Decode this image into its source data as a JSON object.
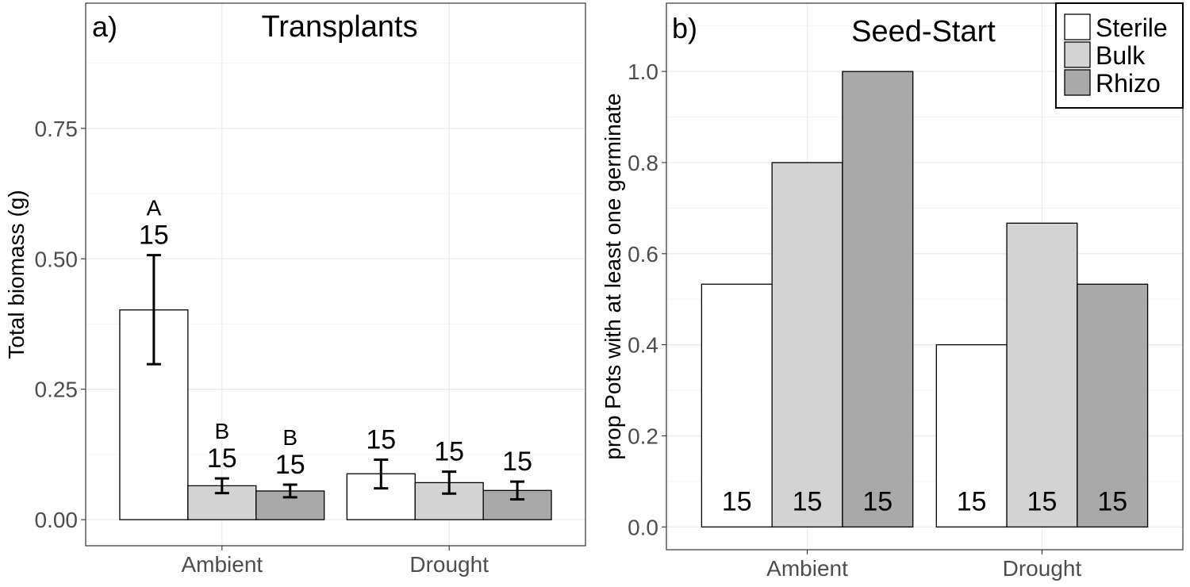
{
  "chart_data": [
    {
      "type": "bar",
      "tag": "a)",
      "title": "Transplants",
      "ylabel": "Total biomass (g)",
      "xlabel": "",
      "ylim": [
        -0.05,
        0.99
      ],
      "yticks": [
        0.0,
        0.25,
        0.5,
        0.75
      ],
      "ytick_labels": [
        "0.00",
        "0.25",
        "0.50",
        "0.75"
      ],
      "grid": true,
      "categories": [
        "Ambient",
        "Drought"
      ],
      "series": [
        {
          "name": "Sterile",
          "color": "#ffffff",
          "values": [
            0.402,
            0.088
          ],
          "err_low": [
            0.298,
            0.06
          ],
          "err_high": [
            0.507,
            0.115
          ],
          "n_labels": [
            "15",
            "15"
          ],
          "letters": [
            "A",
            ""
          ]
        },
        {
          "name": "Bulk",
          "color": "#d3d3d3",
          "values": [
            0.065,
            0.071
          ],
          "err_low": [
            0.051,
            0.05
          ],
          "err_high": [
            0.079,
            0.092
          ],
          "n_labels": [
            "15",
            "15"
          ],
          "letters": [
            "B",
            ""
          ]
        },
        {
          "name": "Rhizo",
          "color": "#a9a9a9",
          "values": [
            0.055,
            0.056
          ],
          "err_low": [
            0.043,
            0.039
          ],
          "err_high": [
            0.067,
            0.073
          ],
          "n_labels": [
            "15",
            "15"
          ],
          "letters": [
            "B",
            ""
          ]
        }
      ]
    },
    {
      "type": "bar",
      "tag": "b)",
      "title": "Seed-Start",
      "ylabel": "prop Pots with at least one germinate",
      "xlabel": "",
      "ylim": [
        -0.05,
        1.15
      ],
      "yticks": [
        0.0,
        0.2,
        0.4,
        0.6,
        0.8,
        1.0
      ],
      "ytick_labels": [
        "0.0",
        "0.2",
        "0.4",
        "0.6",
        "0.8",
        "1.0"
      ],
      "grid": true,
      "legend_position": "top-right",
      "categories": [
        "Ambient",
        "Drought"
      ],
      "series": [
        {
          "name": "Sterile",
          "color": "#ffffff",
          "values": [
            0.533,
            0.4
          ],
          "n_labels": [
            "15",
            "15"
          ]
        },
        {
          "name": "Bulk",
          "color": "#d3d3d3",
          "values": [
            0.8,
            0.667
          ],
          "n_labels": [
            "15",
            "15"
          ]
        },
        {
          "name": "Rhizo",
          "color": "#a9a9a9",
          "values": [
            1.0,
            0.533
          ],
          "n_labels": [
            "15",
            "15"
          ]
        }
      ]
    }
  ]
}
